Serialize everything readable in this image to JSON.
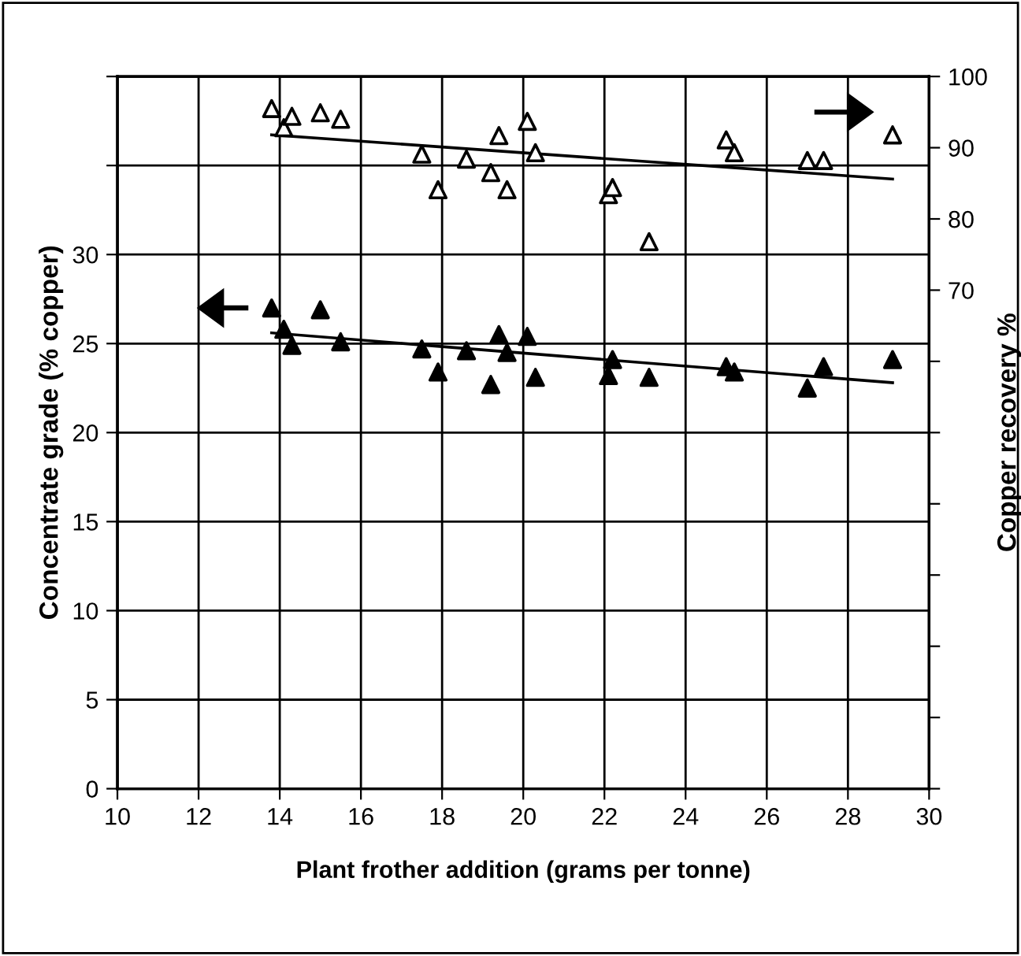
{
  "chart_data": {
    "type": "scatter",
    "xlabel": "Plant frother addition (grams per tonne)",
    "ylabel": "Concentrate grade (% copper)",
    "y2label": "Copper recovery %",
    "xlim": [
      10,
      30
    ],
    "xticks": [
      10,
      12,
      14,
      16,
      18,
      20,
      22,
      24,
      26,
      28,
      30
    ],
    "ylim": [
      0,
      40
    ],
    "yticks": [
      0,
      5,
      10,
      15,
      20,
      25,
      30,
      {
        "value": 35,
        "label": null
      },
      {
        "value": 40,
        "label": null
      }
    ],
    "y2lim": [
      0,
      100
    ],
    "y2ticks": [
      {
        "value": 0,
        "label": null
      },
      {
        "value": 10,
        "label": null
      },
      {
        "value": 20,
        "label": null
      },
      {
        "value": 30,
        "label": null
      },
      {
        "value": 40,
        "label": null
      },
      {
        "value": 50,
        "label": null
      },
      {
        "value": 60,
        "label": null
      },
      70,
      80,
      90,
      100
    ],
    "grid": true,
    "legend": false,
    "series": [
      {
        "marker": "triangle",
        "color": "#000000",
        "x": [
          13.8,
          14.1,
          14.3,
          15.0,
          15.5,
          17.5,
          17.9,
          18.6,
          19.2,
          19.4,
          19.6,
          20.1,
          20.3,
          22.1,
          22.2,
          23.1,
          25.0,
          25.2,
          27.0,
          27.4,
          29.1
        ],
        "values": [
          27.0,
          25.8,
          24.9,
          26.9,
          25.1,
          24.7,
          23.4,
          24.6,
          22.7,
          25.5,
          24.5,
          25.4,
          23.1,
          23.2,
          24.1,
          23.1,
          23.7,
          23.4,
          22.5,
          23.7,
          24.1
        ]
      },
      {
        "type": "line",
        "color": "#000000",
        "x": [
          13.8,
          29.1
        ],
        "values": [
          25.6,
          22.8
        ]
      },
      {
        "axis": "y2",
        "marker": "triangle",
        "color": "#000000",
        "x": [
          13.8,
          14.1,
          14.3,
          15.0,
          15.5,
          17.5,
          17.9,
          18.6,
          19.2,
          19.4,
          19.6,
          20.1,
          20.3,
          22.1,
          22.2,
          23.1,
          25.0,
          25.2,
          27.0,
          27.4,
          29.1
        ],
        "values": [
          95.5,
          92.8,
          94.4,
          94.9,
          94.0,
          89.1,
          84.1,
          88.4,
          86.5,
          91.7,
          84.1,
          93.7,
          89.3,
          83.4,
          84.4,
          76.8,
          91.1,
          89.3,
          88.2,
          88.2,
          91.8
        ]
      },
      {
        "type": "line",
        "axis": "y2",
        "color": "#000000",
        "x": [
          13.8,
          29.1
        ],
        "values": [
          91.8,
          85.6
        ]
      }
    ]
  }
}
